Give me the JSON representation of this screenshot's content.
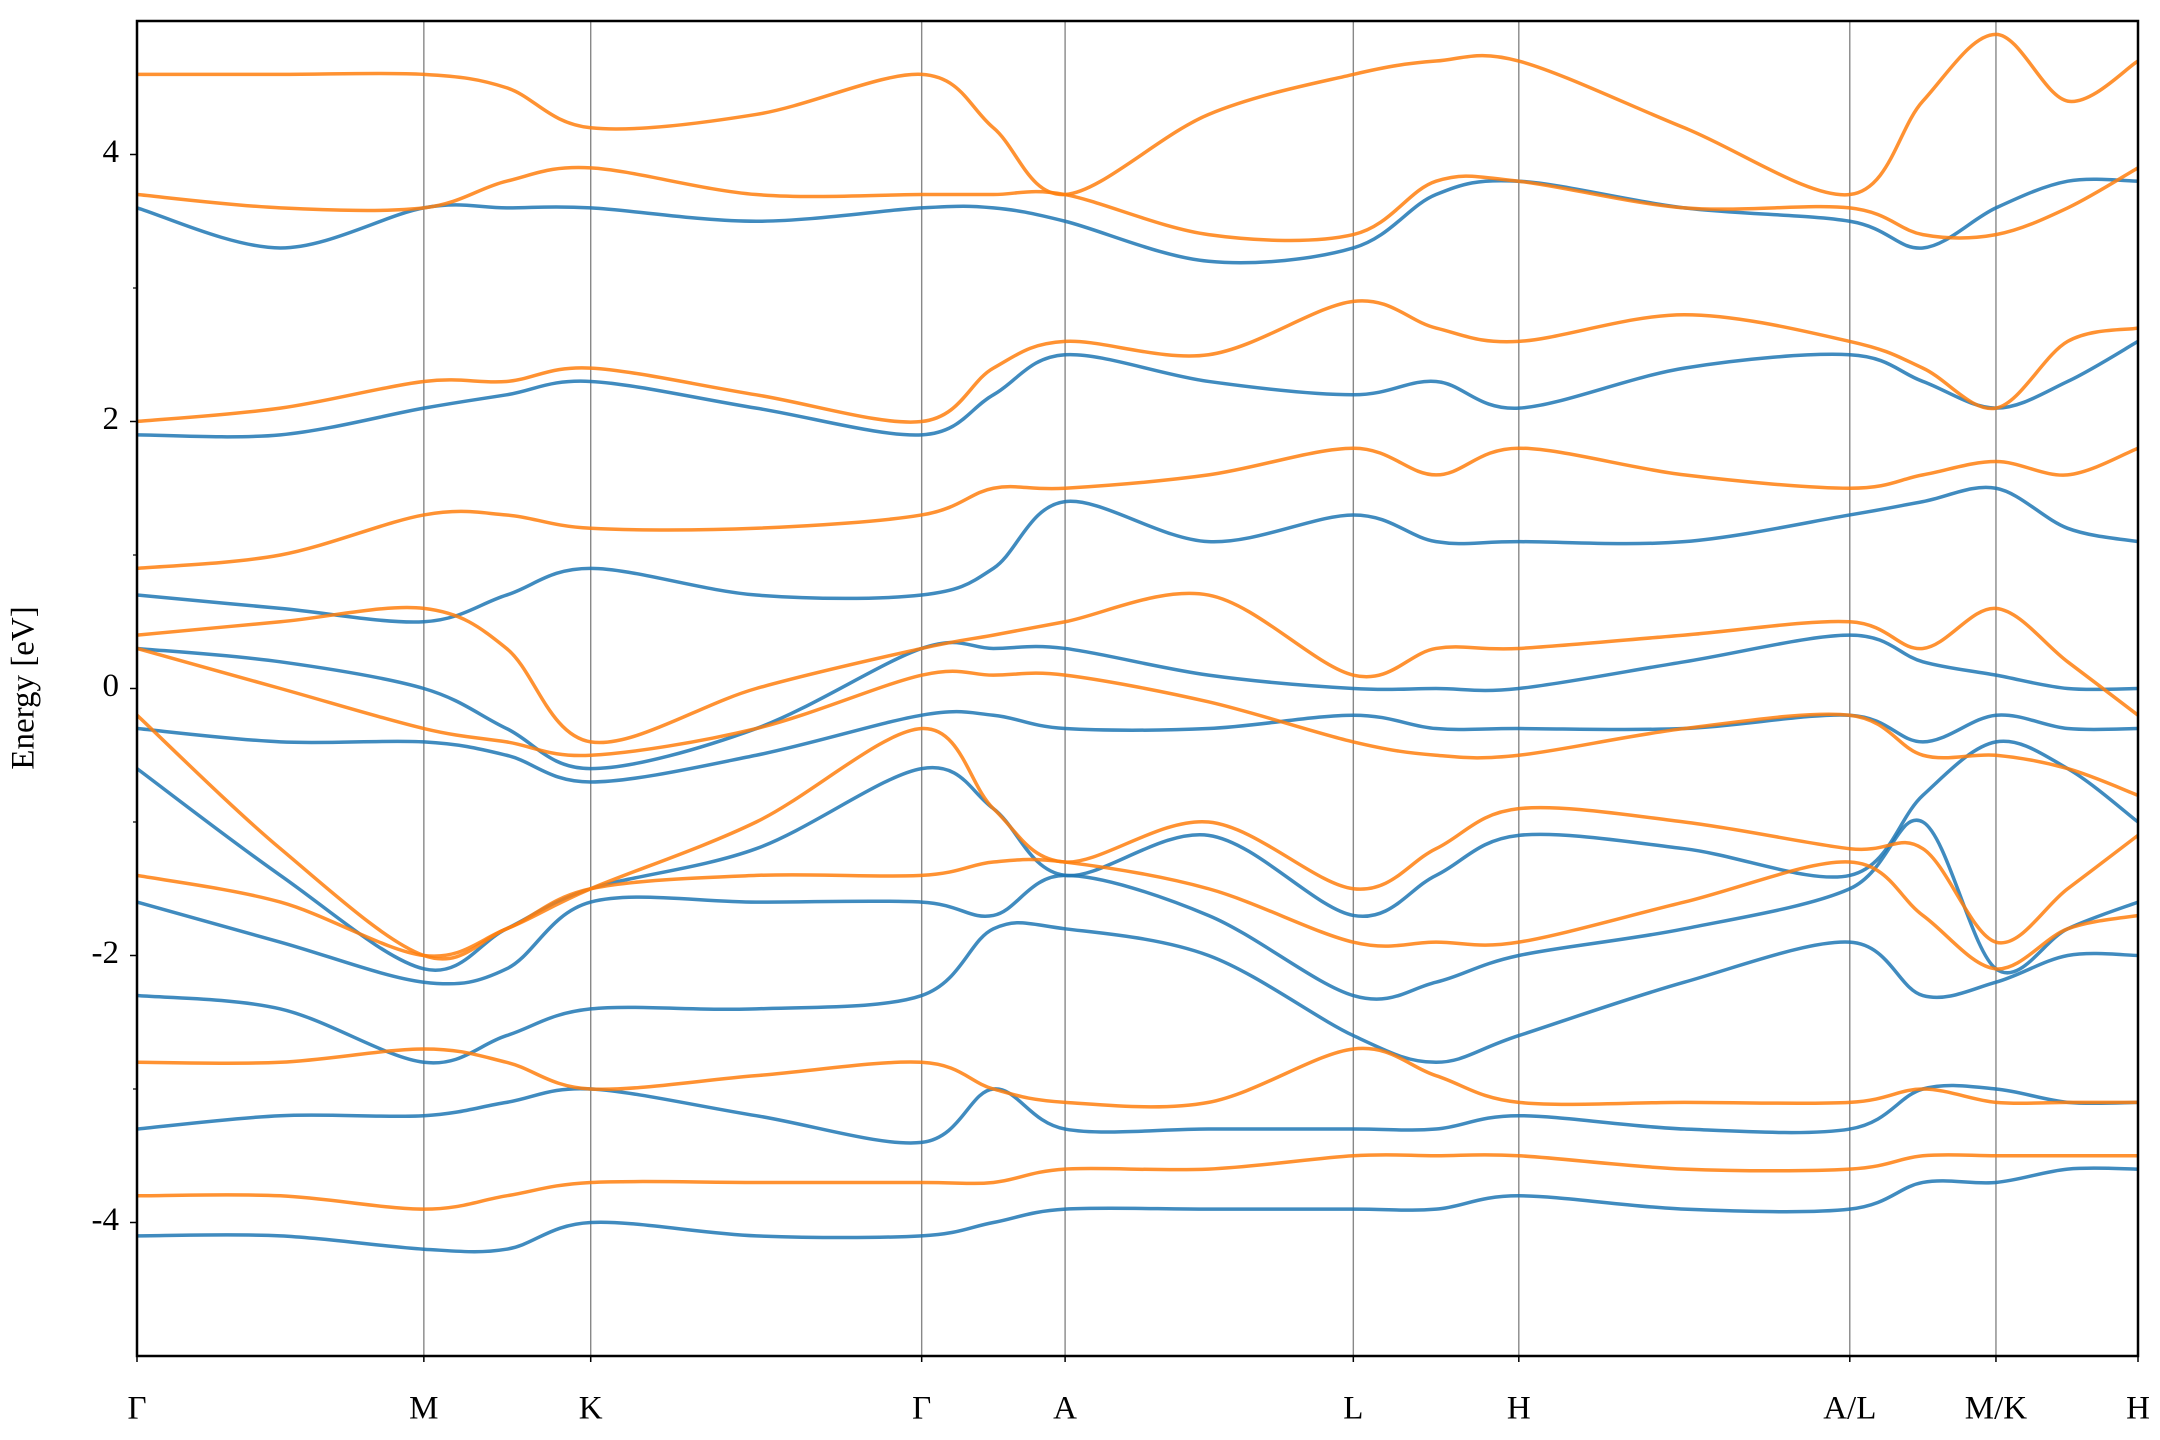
{
  "chart_data": {
    "type": "line",
    "ylabel": "Energy [eV]",
    "x": [
      0,
      0.104,
      0.208,
      0.268,
      0.329,
      0.449,
      0.569,
      0.621,
      0.673,
      0.777,
      0.882,
      0.942,
      1.002,
      1.122,
      1.242,
      1.295,
      1.348,
      1.4,
      1.451
    ],
    "xlim": [
      0,
      1.451
    ],
    "xticks": [
      {
        "value": 0,
        "label": "Γ"
      },
      {
        "value": 0.208,
        "label": "M"
      },
      {
        "value": 0.329,
        "label": "K"
      },
      {
        "value": 0.569,
        "label": "Γ"
      },
      {
        "value": 0.673,
        "label": "A"
      },
      {
        "value": 0.882,
        "label": "L"
      },
      {
        "value": 1.002,
        "label": "H"
      },
      {
        "value": 1.242,
        "label": "A/L"
      },
      {
        "value": 1.348,
        "label": "M/K"
      },
      {
        "value": 1.451,
        "label": "H"
      }
    ],
    "xgrid": true,
    "ylim": [
      -5,
      5
    ],
    "yticks": [
      -4,
      -2,
      0,
      2,
      4
    ],
    "yminorticks": [
      -3,
      -1,
      1,
      3
    ],
    "series": [
      {
        "color": "#1f77b4",
        "values": [
          -4.1,
          -4.1,
          -4.2,
          -4.2,
          -4.0,
          -4.1,
          -4.1,
          -4.0,
          -3.9,
          -3.9,
          -3.9,
          -3.9,
          -3.8,
          -3.9,
          -3.9,
          -3.7,
          -3.7,
          -3.6,
          -3.6
        ]
      },
      {
        "color": "#1f77b4",
        "values": [
          -3.3,
          -3.2,
          -3.2,
          -3.1,
          -3.0,
          -3.2,
          -3.4,
          -3.0,
          -3.3,
          -3.3,
          -3.3,
          -3.3,
          -3.2,
          -3.3,
          -3.3,
          -3.0,
          -3.0,
          -3.1,
          -3.1
        ]
      },
      {
        "color": "#1f77b4",
        "values": [
          -2.3,
          -2.4,
          -2.8,
          -2.6,
          -2.4,
          -2.4,
          -2.3,
          -1.8,
          -1.8,
          -2.0,
          -2.6,
          -2.8,
          -2.6,
          -2.2,
          -1.9,
          -2.3,
          -2.2,
          -2.0,
          -2.0
        ]
      },
      {
        "color": "#1f77b4",
        "values": [
          -1.6,
          -1.9,
          -2.2,
          -2.1,
          -1.6,
          -1.6,
          -1.6,
          -1.7,
          -1.4,
          -1.7,
          -2.3,
          -2.2,
          -2.0,
          -1.8,
          -1.5,
          -1.0,
          -2.1,
          -1.8,
          -1.6
        ]
      },
      {
        "color": "#1f77b4",
        "values": [
          -0.6,
          -1.4,
          -2.1,
          -1.8,
          -1.5,
          -1.2,
          -0.6,
          -0.9,
          -1.4,
          -1.1,
          -1.7,
          -1.4,
          -1.1,
          -1.2,
          -1.4,
          -0.8,
          -0.4,
          -0.6,
          -1.0
        ]
      },
      {
        "color": "#1f77b4",
        "values": [
          -0.3,
          -0.4,
          -0.4,
          -0.5,
          -0.7,
          -0.5,
          -0.2,
          -0.2,
          -0.3,
          -0.3,
          -0.2,
          -0.3,
          -0.3,
          -0.3,
          -0.2,
          -0.4,
          -0.2,
          -0.3,
          -0.3
        ]
      },
      {
        "color": "#1f77b4",
        "values": [
          0.3,
          0.2,
          0.0,
          -0.3,
          -0.6,
          -0.3,
          0.3,
          0.3,
          0.3,
          0.1,
          0.0,
          0.0,
          0.0,
          0.2,
          0.4,
          0.2,
          0.1,
          0.0,
          0.0
        ]
      },
      {
        "color": "#1f77b4",
        "values": [
          0.7,
          0.6,
          0.5,
          0.7,
          0.9,
          0.7,
          0.7,
          0.9,
          1.4,
          1.1,
          1.3,
          1.1,
          1.1,
          1.1,
          1.3,
          1.4,
          1.5,
          1.2,
          1.1
        ]
      },
      {
        "color": "#1f77b4",
        "values": [
          1.9,
          1.9,
          2.1,
          2.2,
          2.3,
          2.1,
          1.9,
          2.2,
          2.5,
          2.3,
          2.2,
          2.3,
          2.1,
          2.4,
          2.5,
          2.3,
          2.1,
          2.3,
          2.6
        ]
      },
      {
        "color": "#1f77b4",
        "values": [
          3.6,
          3.3,
          3.6,
          3.6,
          3.6,
          3.5,
          3.6,
          3.6,
          3.5,
          3.2,
          3.3,
          3.7,
          3.8,
          3.6,
          3.5,
          3.3,
          3.6,
          3.8,
          3.8
        ]
      },
      {
        "color": "#ff7f0e",
        "values": [
          -3.8,
          -3.8,
          -3.9,
          -3.8,
          -3.7,
          -3.7,
          -3.7,
          -3.7,
          -3.6,
          -3.6,
          -3.5,
          -3.5,
          -3.5,
          -3.6,
          -3.6,
          -3.5,
          -3.5,
          -3.5,
          -3.5
        ]
      },
      {
        "color": "#ff7f0e",
        "values": [
          -2.8,
          -2.8,
          -2.7,
          -2.8,
          -3.0,
          -2.9,
          -2.8,
          -3.0,
          -3.1,
          -3.1,
          -2.7,
          -2.9,
          -3.1,
          -3.1,
          -3.1,
          -3.0,
          -3.1,
          -3.1,
          -3.1
        ]
      },
      {
        "color": "#ff7f0e",
        "values": [
          -1.4,
          -1.6,
          -2.0,
          -1.8,
          -1.5,
          -1.4,
          -1.4,
          -1.3,
          -1.3,
          -1.5,
          -1.9,
          -1.9,
          -1.9,
          -1.6,
          -1.3,
          -1.7,
          -2.1,
          -1.8,
          -1.7
        ]
      },
      {
        "color": "#ff7f0e",
        "values": [
          -0.2,
          -1.2,
          -2.0,
          -1.8,
          -1.5,
          -1.0,
          -0.3,
          -0.9,
          -1.3,
          -1.0,
          -1.5,
          -1.2,
          -0.9,
          -1.0,
          -1.2,
          -1.2,
          -1.9,
          -1.5,
          -1.1
        ]
      },
      {
        "color": "#ff7f0e",
        "values": [
          0.3,
          0.0,
          -0.3,
          -0.4,
          -0.5,
          -0.3,
          0.1,
          0.1,
          0.1,
          -0.1,
          -0.4,
          -0.5,
          -0.5,
          -0.3,
          -0.2,
          -0.5,
          -0.5,
          -0.6,
          -0.8
        ]
      },
      {
        "color": "#ff7f0e",
        "values": [
          0.4,
          0.5,
          0.6,
          0.3,
          -0.4,
          0.0,
          0.3,
          0.4,
          0.5,
          0.7,
          0.1,
          0.3,
          0.3,
          0.4,
          0.5,
          0.3,
          0.6,
          0.2,
          -0.2
        ]
      },
      {
        "color": "#ff7f0e",
        "values": [
          0.9,
          1.0,
          1.3,
          1.3,
          1.2,
          1.2,
          1.3,
          1.5,
          1.5,
          1.6,
          1.8,
          1.6,
          1.8,
          1.6,
          1.5,
          1.6,
          1.7,
          1.6,
          1.8
        ]
      },
      {
        "color": "#ff7f0e",
        "values": [
          2.0,
          2.1,
          2.3,
          2.3,
          2.4,
          2.2,
          2.0,
          2.4,
          2.6,
          2.5,
          2.9,
          2.7,
          2.6,
          2.8,
          2.6,
          2.4,
          2.1,
          2.6,
          2.7
        ]
      },
      {
        "color": "#ff7f0e",
        "values": [
          3.7,
          3.6,
          3.6,
          3.8,
          3.9,
          3.7,
          3.7,
          3.7,
          3.7,
          3.4,
          3.4,
          3.8,
          3.8,
          3.6,
          3.6,
          3.4,
          3.4,
          3.6,
          3.9
        ]
      },
      {
        "color": "#ff7f0e",
        "values": [
          4.6,
          4.6,
          4.6,
          4.5,
          4.2,
          4.3,
          4.6,
          4.2,
          3.7,
          4.3,
          4.6,
          4.7,
          4.7,
          4.2,
          3.7,
          4.4,
          4.9,
          4.4,
          4.7
        ]
      }
    ]
  }
}
